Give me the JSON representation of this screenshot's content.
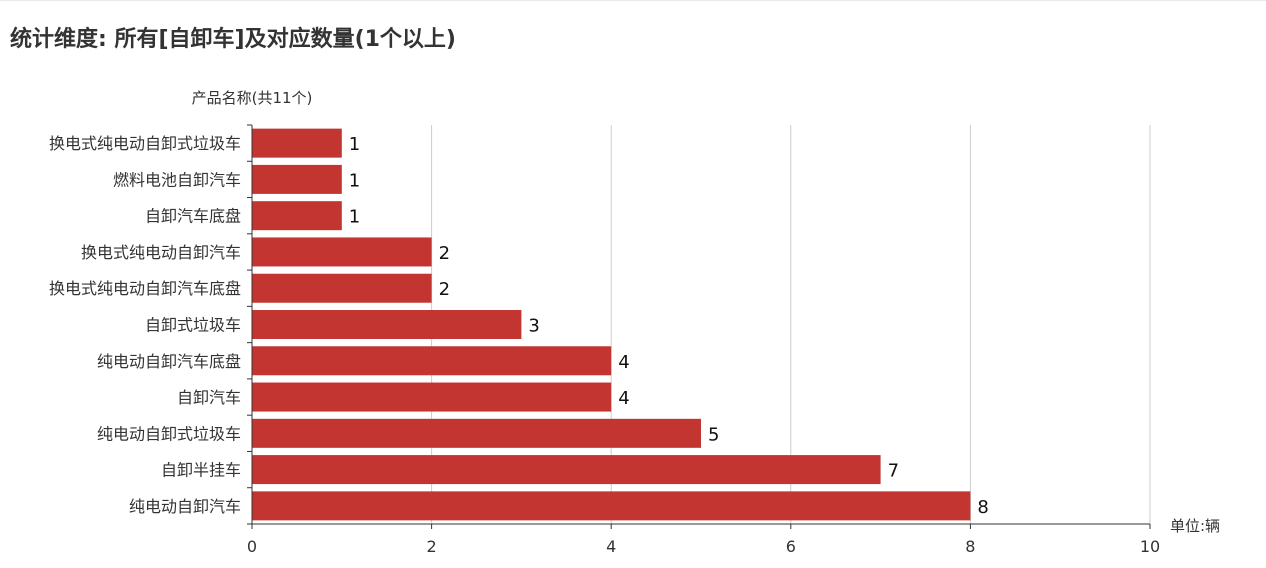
{
  "page": {
    "title": "统计维度: 所有[自卸车]及对应数量(1个以上)"
  },
  "colors": {
    "bar": "#c23531",
    "grid": "#cccccc",
    "axis": "#333333",
    "text": "#333333"
  },
  "chart_data": {
    "type": "bar",
    "orientation": "horizontal",
    "title": "统计维度: 所有[自卸车]及对应数量(1个以上)",
    "ylabel": "产品名称(共11个)",
    "xlabel": "单位:辆",
    "categories": [
      "换电式纯电动自卸式垃圾车",
      "燃料电池自卸汽车",
      "自卸汽车底盘",
      "换电式纯电动自卸汽车",
      "换电式纯电动自卸汽车底盘",
      "自卸式垃圾车",
      "纯电动自卸汽车底盘",
      "自卸汽车",
      "纯电动自卸式垃圾车",
      "自卸半挂车",
      "纯电动自卸汽车"
    ],
    "values": [
      1,
      1,
      1,
      2,
      2,
      3,
      4,
      4,
      5,
      7,
      8
    ],
    "xlim": [
      0,
      10
    ],
    "xticks": [
      0,
      2,
      4,
      6,
      8,
      10
    ],
    "grid": true,
    "legend": "none"
  }
}
